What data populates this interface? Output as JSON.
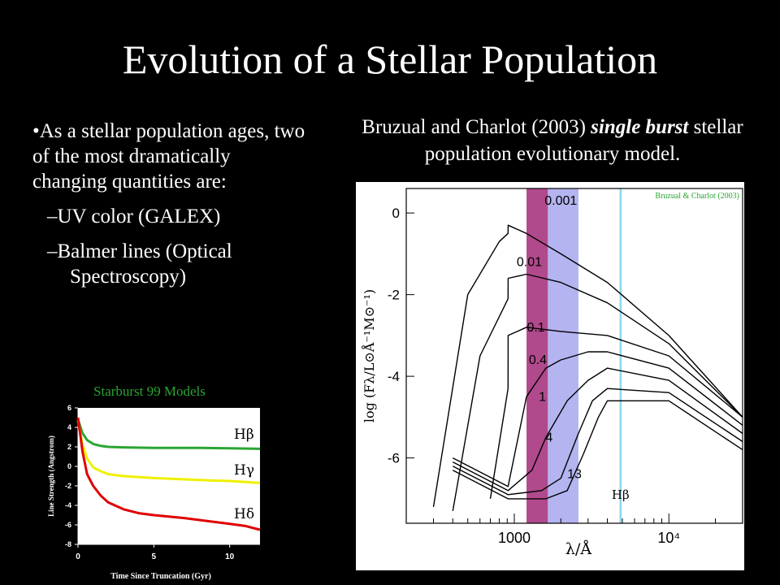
{
  "title": "Evolution of a Stellar Population",
  "bullets": {
    "main": "•As a stellar population ages, two of the most dramatically changing quantities are:",
    "sub": [
      "–UV color (GALEX)",
      "–Balmer lines (Optical Spectroscopy)"
    ]
  },
  "caption": {
    "pre": "Bruzual and Charlot (2003) ",
    "em": "single burst",
    "post": " stellar population evolutionary model."
  },
  "colors": {
    "green": "#2aa532",
    "yellow": "#f0f000",
    "red": "#e00000",
    "magenta": "#b04a8c",
    "lavender": "#b4b4f0",
    "cyan": "#8cd8f0"
  },
  "chart_data": [
    {
      "type": "line",
      "title": "Starburst 99 Models",
      "xlabel": "Time Since Truncation (Gyr)",
      "ylabel": "Line Strength (Angstrom)",
      "xlim": [
        0,
        12
      ],
      "ylim": [
        -8,
        6
      ],
      "xticks": [
        0,
        5,
        10
      ],
      "yticks": [
        6,
        4,
        2,
        0,
        -2,
        -4,
        -6,
        -8
      ],
      "series": [
        {
          "name": "Hβ",
          "color": "#2aa532",
          "x": [
            0,
            0.3,
            0.6,
            1,
            1.5,
            2,
            3,
            5,
            8,
            10,
            12
          ],
          "y": [
            4.8,
            3.4,
            2.7,
            2.3,
            2.1,
            2.0,
            1.95,
            1.9,
            1.9,
            1.85,
            1.8
          ]
        },
        {
          "name": "Hγ",
          "color": "#f0f000",
          "x": [
            0,
            0.3,
            0.6,
            1,
            1.5,
            2,
            3,
            5,
            8,
            10,
            12
          ],
          "y": [
            4.7,
            2.2,
            0.8,
            -0.1,
            -0.5,
            -0.8,
            -1.0,
            -1.2,
            -1.4,
            -1.5,
            -1.7
          ]
        },
        {
          "name": "Hδ",
          "color": "#e00000",
          "x": [
            0,
            0.3,
            0.6,
            1,
            1.5,
            2,
            3,
            4,
            5,
            7,
            9,
            10,
            11,
            12
          ],
          "y": [
            5.0,
            1.5,
            -0.8,
            -2.0,
            -3.0,
            -3.7,
            -4.4,
            -4.8,
            -5.0,
            -5.3,
            -5.7,
            -5.9,
            -6.1,
            -6.5
          ]
        }
      ]
    },
    {
      "type": "line",
      "credit": "Bruzual & Charlot (2003)",
      "xlabel": "λ/Å",
      "ylabel": "log (Fλ/L⊙Å⁻¹M⊙⁻¹)",
      "xscale": "log",
      "xlim": [
        200,
        30000
      ],
      "ylim": [
        -7.6,
        0.6
      ],
      "xticks": [
        "1000",
        "10⁴"
      ],
      "yticks": [
        0,
        -2,
        -4,
        -6
      ],
      "bands": [
        {
          "x": [
            1200,
            1650
          ],
          "color": "#b04a8c"
        },
        {
          "x": [
            1650,
            2600
          ],
          "color": "#b4b4f0"
        },
        {
          "x": [
            4800,
            4950
          ],
          "color": "#8cd8f0",
          "label": "Hβ"
        }
      ],
      "series": [
        {
          "name": "0.001",
          "x": [
            300,
            500,
            800,
            911,
            912,
            1200,
            2000,
            4000,
            10000,
            30000
          ],
          "y": [
            -7.2,
            -2.0,
            -0.7,
            -0.5,
            -0.3,
            -0.5,
            -1.0,
            -1.7,
            -3.0,
            -5.0
          ]
        },
        {
          "name": "0.01",
          "x": [
            400,
            600,
            911,
            912,
            1200,
            2000,
            4000,
            10000,
            30000
          ],
          "y": [
            -7.3,
            -3.5,
            -2.1,
            -1.6,
            -1.5,
            -1.7,
            -2.2,
            -3.2,
            -5.0
          ]
        },
        {
          "name": "0.1",
          "x": [
            700,
            911,
            912,
            1200,
            2000,
            4000,
            10000,
            30000
          ],
          "y": [
            -7.0,
            -4.3,
            -3.0,
            -2.8,
            -2.9,
            -3.0,
            -3.5,
            -5.0
          ]
        },
        {
          "name": "0.4",
          "x": [
            400,
            911,
            1200,
            1600,
            2000,
            3000,
            4000,
            10000,
            30000
          ],
          "y": [
            -6.0,
            -6.7,
            -4.5,
            -3.8,
            -3.6,
            -3.4,
            -3.4,
            -3.8,
            -5.2
          ]
        },
        {
          "name": "1",
          "x": [
            400,
            911,
            1300,
            1600,
            2200,
            3000,
            4000,
            10000,
            30000
          ],
          "y": [
            -6.1,
            -6.8,
            -6.3,
            -5.5,
            -4.6,
            -4.1,
            -3.8,
            -4.1,
            -5.4
          ]
        },
        {
          "name": "4",
          "x": [
            400,
            911,
            1500,
            2000,
            2600,
            3200,
            4000,
            10000,
            30000
          ],
          "y": [
            -6.2,
            -6.9,
            -6.8,
            -6.5,
            -5.4,
            -4.6,
            -4.3,
            -4.4,
            -5.6
          ]
        },
        {
          "name": "13",
          "x": [
            400,
            911,
            1600,
            2200,
            2800,
            3500,
            4000,
            10000,
            30000
          ],
          "y": [
            -6.3,
            -7.0,
            -7.0,
            -6.8,
            -5.9,
            -5.0,
            -4.6,
            -4.6,
            -5.8
          ]
        }
      ]
    }
  ]
}
